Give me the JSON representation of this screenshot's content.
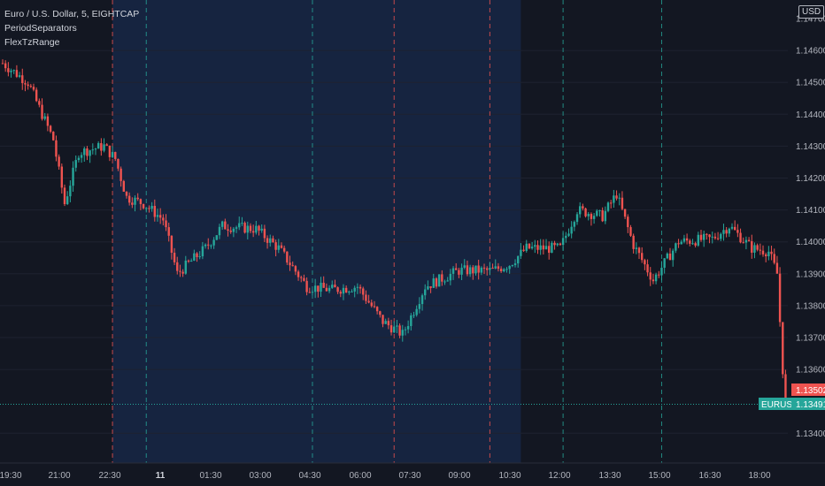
{
  "legend": {
    "symbol": "Euro / U.S. Dollar, 5, EIGHTCAP",
    "indicator1": "PeriodSeparators",
    "indicator2": "FlexTzRange"
  },
  "price_axis": {
    "unit": "USD",
    "symbol_label": "EURUSD",
    "last_price": "1.13491",
    "prev_price": "1.13502",
    "ticks": [
      "1.14600",
      "1.14500",
      "1.14400",
      "1.14300",
      "1.14200",
      "1.14100",
      "1.14000",
      "1.13900",
      "1.13800",
      "1.13700",
      "1.13600",
      "1.13400"
    ],
    "top_tick_partial": "1.14700"
  },
  "time_axis": {
    "ticks": [
      "19:30",
      "21:00",
      "22:30",
      "11",
      "01:30",
      "03:00",
      "04:30",
      "06:00",
      "07:30",
      "09:00",
      "10:30",
      "12:00",
      "13:30",
      "15:00",
      "16:30",
      "18:00"
    ],
    "day_tick": "11"
  },
  "colors": {
    "background": "#131722",
    "session_shade": "#162440",
    "up": "#26a69a",
    "down": "#ef5350",
    "grid": "#1e2230",
    "sep_teal": "#26a69a",
    "sep_red": "#ef5350"
  },
  "chart_data": {
    "type": "candlestick",
    "instrument": "EURUSD",
    "timeframe": "5",
    "ylim": [
      1.1335,
      1.1475
    ],
    "x_range": [
      "19:30",
      "18:40"
    ],
    "shaded_session": [
      "22:45",
      "10:50"
    ],
    "last_price": 1.13491,
    "price_trace": [
      [
        "19:30",
        1.1456
      ],
      [
        "20:15",
        1.145
      ],
      [
        "21:00",
        1.1432
      ],
      [
        "21:20",
        1.1412
      ],
      [
        "21:45",
        1.1428
      ],
      [
        "22:30",
        1.143
      ],
      [
        "22:50",
        1.1426
      ],
      [
        "23:10",
        1.1414
      ],
      [
        "23:40",
        1.1412
      ],
      [
        "00:15",
        1.1407
      ],
      [
        "00:40",
        1.139
      ],
      [
        "01:30",
        1.1398
      ],
      [
        "02:00",
        1.1405
      ],
      [
        "03:00",
        1.1404
      ],
      [
        "03:40",
        1.1398
      ],
      [
        "04:30",
        1.1386
      ],
      [
        "05:15",
        1.1385
      ],
      [
        "06:00",
        1.1386
      ],
      [
        "06:45",
        1.1375
      ],
      [
        "07:20",
        1.1371
      ],
      [
        "08:00",
        1.1386
      ],
      [
        "09:00",
        1.1391
      ],
      [
        "10:00",
        1.1391
      ],
      [
        "10:30",
        1.1393
      ],
      [
        "11:00",
        1.1398
      ],
      [
        "12:00",
        1.1398
      ],
      [
        "12:30",
        1.141
      ],
      [
        "13:15",
        1.1408
      ],
      [
        "13:40",
        1.1415
      ],
      [
        "14:10",
        1.1399
      ],
      [
        "14:45",
        1.1388
      ],
      [
        "15:30",
        1.14
      ],
      [
        "16:30",
        1.1401
      ],
      [
        "17:00",
        1.1405
      ],
      [
        "17:40",
        1.1398
      ],
      [
        "18:10",
        1.1397
      ],
      [
        "18:25",
        1.139
      ],
      [
        "18:35",
        1.136
      ],
      [
        "18:40",
        1.1349
      ]
    ],
    "period_separators": [
      {
        "time": "22:45",
        "style": "red"
      },
      {
        "time": "23:45",
        "style": "teal"
      },
      {
        "time": "04:40",
        "style": "teal"
      },
      {
        "time": "07:05",
        "style": "red"
      },
      {
        "time": "09:55",
        "style": "red"
      },
      {
        "time": "12:05",
        "style": "teal"
      },
      {
        "time": "15:00",
        "style": "teal"
      }
    ]
  }
}
